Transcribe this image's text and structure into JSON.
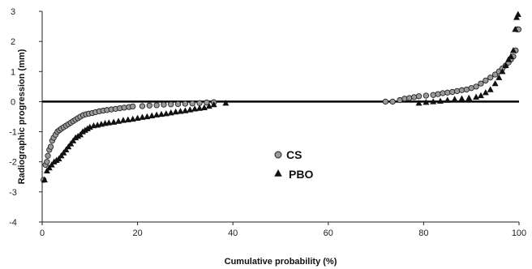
{
  "chart_data": {
    "type": "scatter",
    "title": "",
    "xlabel": "Cumulative probability (%)",
    "ylabel": "Radiographic progression (mm)",
    "xlim": [
      0,
      100
    ],
    "ylim": [
      -4,
      3
    ],
    "xticks": [
      0,
      20,
      40,
      60,
      80,
      100
    ],
    "yticks": [
      3,
      2,
      1,
      0,
      -1,
      -2,
      -3,
      -4
    ],
    "reference_line": 0,
    "grid": false,
    "legend_placement": "center",
    "series": [
      {
        "name": "CS",
        "marker": "circle",
        "color": "#9a9a9a",
        "x": [
          0.3,
          0.7,
          1.0,
          1.2,
          1.5,
          1.8,
          2.1,
          2.4,
          2.8,
          3.2,
          3.6,
          4.0,
          4.5,
          5.0,
          5.5,
          6.0,
          6.5,
          7.0,
          7.5,
          8.0,
          8.6,
          9.2,
          9.8,
          10.5,
          11.2,
          12.0,
          12.8,
          13.6,
          14.5,
          15.4,
          16.3,
          17.2,
          18.2,
          19.0,
          21.0,
          22.5,
          24.0,
          25.5,
          27.0,
          28.5,
          30.0,
          31.5,
          33.0,
          34.5,
          36.0,
          72.0,
          73.5,
          75.0,
          76.0,
          77.0,
          78.0,
          79.0,
          80.5,
          82.0,
          83.0,
          84.0,
          85.0,
          86.0,
          87.0,
          88.0,
          89.0,
          90.0,
          91.0,
          92.0,
          93.0,
          94.0,
          95.0,
          95.8,
          96.5,
          97.2,
          97.8,
          98.3,
          98.8,
          99.3,
          99.6,
          99.9
        ],
        "y": [
          -2.6,
          -2.1,
          -2.0,
          -1.8,
          -1.6,
          -1.5,
          -1.3,
          -1.2,
          -1.1,
          -1.0,
          -0.95,
          -0.9,
          -0.85,
          -0.8,
          -0.75,
          -0.7,
          -0.65,
          -0.6,
          -0.55,
          -0.5,
          -0.45,
          -0.42,
          -0.4,
          -0.38,
          -0.35,
          -0.32,
          -0.3,
          -0.28,
          -0.26,
          -0.24,
          -0.22,
          -0.2,
          -0.18,
          -0.16,
          -0.15,
          -0.13,
          -0.12,
          -0.1,
          -0.09,
          -0.08,
          -0.07,
          -0.06,
          -0.05,
          -0.03,
          -0.02,
          0.0,
          0.0,
          0.05,
          0.1,
          0.12,
          0.15,
          0.18,
          0.2,
          0.22,
          0.25,
          0.28,
          0.3,
          0.32,
          0.35,
          0.38,
          0.4,
          0.45,
          0.5,
          0.6,
          0.7,
          0.8,
          0.9,
          1.0,
          1.1,
          1.2,
          1.3,
          1.4,
          1.5,
          1.7,
          2.4,
          2.4
        ]
      },
      {
        "name": "PBO",
        "marker": "triangle",
        "color": "#111111",
        "x": [
          0.5,
          1.0,
          1.5,
          2.0,
          2.5,
          3.0,
          3.5,
          4.0,
          4.5,
          5.0,
          5.5,
          6.0,
          6.5,
          7.0,
          7.5,
          8.0,
          8.5,
          9.0,
          9.5,
          10.0,
          10.8,
          11.6,
          12.4,
          13.2,
          14.0,
          15.0,
          16.0,
          17.0,
          18.0,
          19.0,
          20.0,
          21.0,
          22.0,
          23.0,
          24.0,
          25.0,
          26.0,
          27.0,
          28.0,
          29.0,
          30.0,
          31.0,
          32.0,
          33.0,
          34.0,
          35.0,
          36.0,
          38.5,
          79.0,
          80.5,
          82.0,
          83.5,
          85.0,
          86.5,
          88.0,
          89.5,
          91.0,
          92.0,
          93.0,
          94.0,
          95.0,
          95.8,
          96.5,
          97.2,
          97.8,
          98.3,
          98.8,
          99.2,
          99.5,
          99.8
        ],
        "y": [
          -2.6,
          -2.3,
          -2.2,
          -2.1,
          -2.0,
          -1.95,
          -1.9,
          -1.8,
          -1.7,
          -1.6,
          -1.5,
          -1.4,
          -1.3,
          -1.2,
          -1.15,
          -1.1,
          -1.0,
          -0.95,
          -0.9,
          -0.85,
          -0.8,
          -0.78,
          -0.75,
          -0.72,
          -0.7,
          -0.68,
          -0.65,
          -0.62,
          -0.6,
          -0.58,
          -0.55,
          -0.52,
          -0.5,
          -0.47,
          -0.44,
          -0.42,
          -0.4,
          -0.37,
          -0.34,
          -0.32,
          -0.3,
          -0.27,
          -0.24,
          -0.22,
          -0.2,
          -0.15,
          -0.1,
          -0.05,
          -0.05,
          -0.02,
          0.0,
          0.02,
          0.05,
          0.08,
          0.1,
          0.12,
          0.15,
          0.2,
          0.3,
          0.4,
          0.6,
          0.8,
          1.0,
          1.2,
          1.4,
          1.5,
          1.7,
          2.4,
          2.8,
          2.9
        ]
      }
    ]
  }
}
